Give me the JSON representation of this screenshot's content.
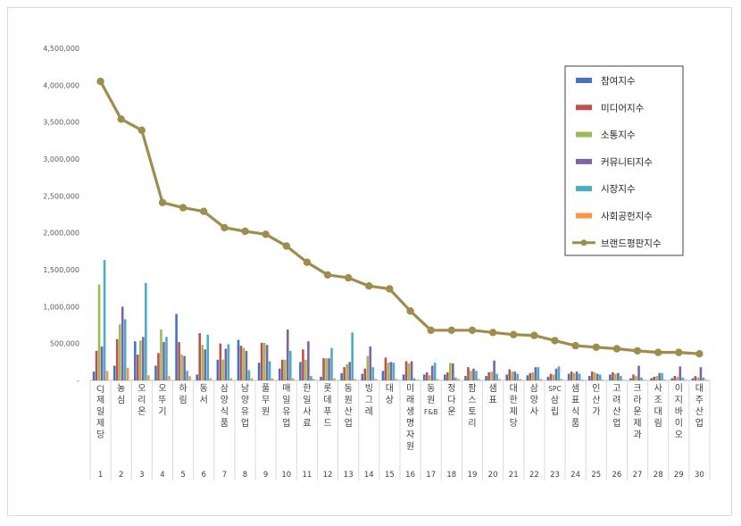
{
  "chart_data": {
    "type": "bar",
    "title": "",
    "xlabel": "",
    "ylabel": "",
    "ylim": [
      0,
      4500000
    ],
    "yticks": [
      "-",
      "500,000",
      "1,000,000",
      "1,500,000",
      "2,000,000",
      "2,500,000",
      "3,000,000",
      "3,500,000",
      "4,000,000",
      "4,500,000"
    ],
    "grid": false,
    "legend_position": "top-right",
    "categories": [
      "CJ제일제당",
      "농심",
      "오리온",
      "오뚜기",
      "하림",
      "동서",
      "삼양식품",
      "남양유업",
      "풀무원",
      "매일유업",
      "한일사료",
      "롯데푸드",
      "동원산업",
      "빙그레",
      "대상",
      "미래생명자원",
      "동원F&B",
      "정다운",
      "팜스토리",
      "샘표",
      "대한제당",
      "삼양사",
      "SPC삼립",
      "샘표식품",
      "인산가",
      "고려산업",
      "크라운제과",
      "사조대림",
      "이지바이오",
      "대주산업"
    ],
    "ranks": [
      "1",
      "2",
      "3",
      "4",
      "5",
      "6",
      "7",
      "8",
      "9",
      "10",
      "11",
      "12",
      "13",
      "14",
      "15",
      "16",
      "17",
      "18",
      "19",
      "20",
      "21",
      "22",
      "23",
      "24",
      "25",
      "26",
      "27",
      "28",
      "29",
      "30"
    ],
    "series": [
      {
        "name": "참여지수",
        "color": "#4472c4",
        "kind": "bar",
        "values": [
          120000,
          200000,
          530000,
          200000,
          900000,
          80000,
          280000,
          550000,
          240000,
          160000,
          250000,
          50000,
          100000,
          90000,
          130000,
          80000,
          80000,
          80000,
          60000,
          60000,
          80000,
          70000,
          50000,
          90000,
          60000,
          80000,
          30000,
          30000,
          30000,
          30000
        ]
      },
      {
        "name": "미디어지수",
        "color": "#c0504d",
        "kind": "bar",
        "values": [
          400000,
          560000,
          350000,
          370000,
          520000,
          640000,
          500000,
          470000,
          510000,
          280000,
          420000,
          300000,
          180000,
          160000,
          310000,
          260000,
          110000,
          110000,
          180000,
          110000,
          150000,
          100000,
          90000,
          120000,
          120000,
          110000,
          80000,
          50000,
          60000,
          60000
        ]
      },
      {
        "name": "소통지수",
        "color": "#9bbb59",
        "kind": "bar",
        "values": [
          1300000,
          760000,
          540000,
          690000,
          350000,
          480000,
          280000,
          440000,
          510000,
          280000,
          280000,
          300000,
          220000,
          330000,
          240000,
          230000,
          70000,
          240000,
          130000,
          120000,
          120000,
          110000,
          80000,
          100000,
          110000,
          90000,
          60000,
          60000,
          50000,
          40000
        ]
      },
      {
        "name": "커뮤니티지수",
        "color": "#8064a2",
        "kind": "bar",
        "values": [
          460000,
          1000000,
          590000,
          520000,
          330000,
          420000,
          430000,
          400000,
          480000,
          690000,
          530000,
          300000,
          250000,
          460000,
          250000,
          260000,
          200000,
          230000,
          160000,
          270000,
          120000,
          180000,
          160000,
          120000,
          90000,
          100000,
          200000,
          100000,
          190000,
          180000
        ]
      },
      {
        "name": "시장지수",
        "color": "#4bacc6",
        "kind": "bar",
        "values": [
          1630000,
          830000,
          1320000,
          590000,
          130000,
          620000,
          490000,
          140000,
          260000,
          400000,
          60000,
          440000,
          650000,
          180000,
          240000,
          30000,
          240000,
          40000,
          130000,
          90000,
          90000,
          180000,
          190000,
          90000,
          80000,
          60000,
          40000,
          100000,
          40000,
          40000
        ]
      },
      {
        "name": "사회공헌지수",
        "color": "#f79646",
        "kind": "bar",
        "values": [
          130000,
          170000,
          70000,
          60000,
          60000,
          30000,
          30000,
          30000,
          30000,
          30000,
          20000,
          30000,
          20000,
          20000,
          20000,
          10000,
          20000,
          20000,
          20000,
          20000,
          20000,
          20000,
          20000,
          10000,
          10000,
          10000,
          10000,
          10000,
          10000,
          10000
        ]
      },
      {
        "name": "브랜드평판지수",
        "color": "#9e8e4e",
        "kind": "line",
        "values": [
          4050000,
          3540000,
          3390000,
          2410000,
          2340000,
          2290000,
          2070000,
          2020000,
          1980000,
          1820000,
          1600000,
          1430000,
          1390000,
          1280000,
          1240000,
          940000,
          680000,
          680000,
          680000,
          650000,
          620000,
          610000,
          540000,
          470000,
          450000,
          430000,
          400000,
          380000,
          380000,
          360000
        ]
      }
    ]
  }
}
